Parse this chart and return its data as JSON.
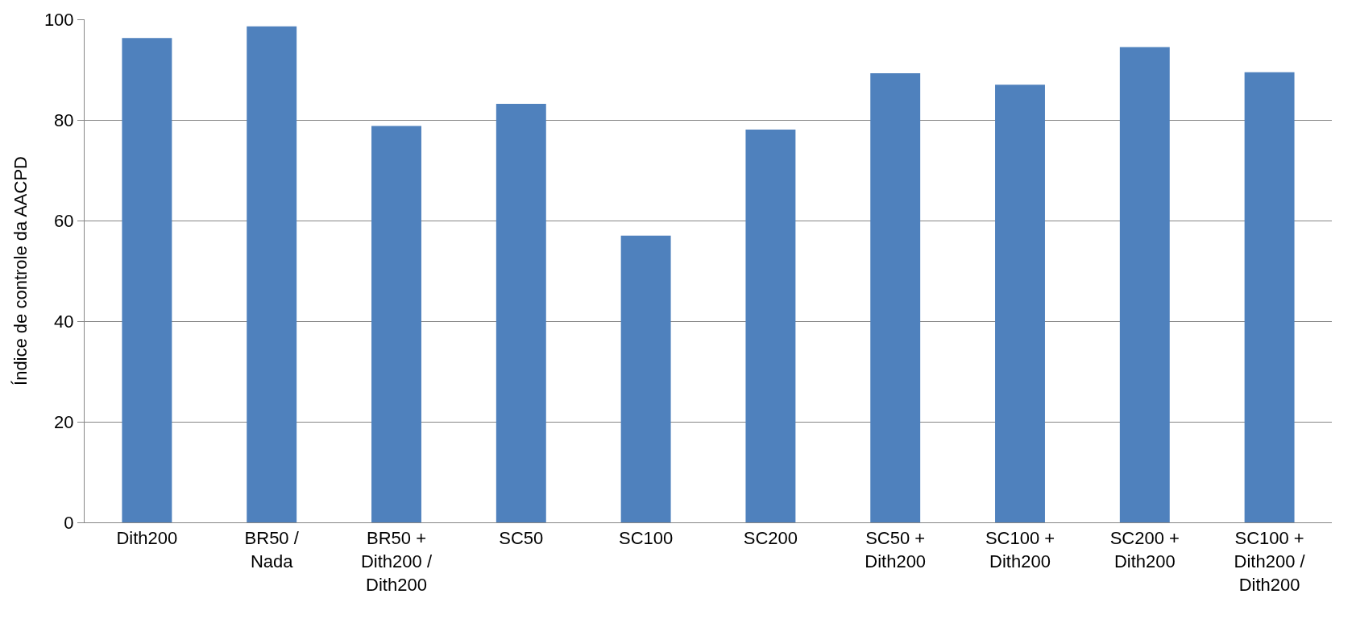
{
  "chart_data": {
    "type": "bar",
    "ylabel": "Índice de controle da AACPD",
    "categories": [
      "Dith200",
      "BR50 / Nada",
      "BR50 + Dith200 / Dith200",
      "SC50",
      "SC100",
      "SC200",
      "SC50 + Dith200",
      "SC100 + Dith200",
      "SC200 + Dith200",
      "SC100 + Dith200 / Dith200"
    ],
    "values": [
      96.3,
      98.6,
      78.8,
      83.2,
      57.0,
      78.1,
      89.3,
      87.0,
      94.5,
      89.5
    ],
    "color": "#4f81bd",
    "ylim": [
      0,
      100
    ],
    "yticks": [
      0,
      20,
      40,
      60,
      80,
      100
    ],
    "grid": "y"
  }
}
